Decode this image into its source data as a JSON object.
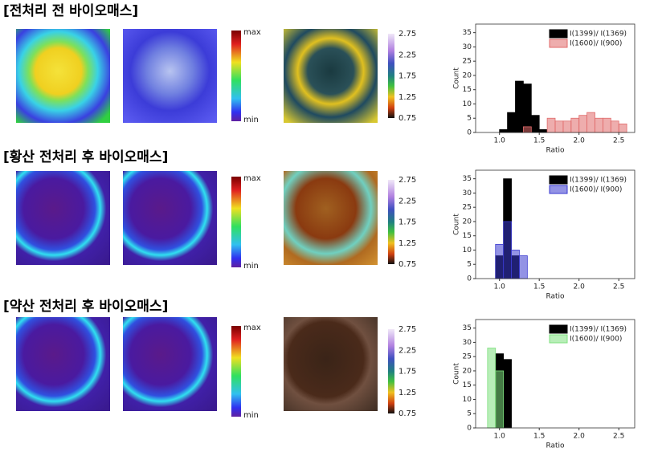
{
  "sections": [
    {
      "title": "[전처리 전 바이오매스]",
      "intensity_labels": [
        "max",
        "min"
      ],
      "ratio_ticks": [
        2.75,
        2.25,
        1.75,
        1.25,
        0.75
      ]
    },
    {
      "title": "[황산 전처리 후 바이오매스]",
      "intensity_labels": [
        "max",
        "min"
      ],
      "ratio_ticks": [
        2.75,
        2.25,
        1.75,
        1.25,
        0.75
      ]
    },
    {
      "title": "[약산 전처리 후 바이오매스]",
      "intensity_labels": [
        "max",
        "min"
      ],
      "ratio_ticks": [
        2.75,
        2.25,
        1.75,
        1.25,
        0.75
      ]
    }
  ],
  "chart_data": [
    {
      "type": "histogram",
      "x_label": "Ratio",
      "y_label": "Count",
      "bins": [
        1.0,
        1.1,
        1.2,
        1.3,
        1.4,
        1.5,
        1.6,
        1.7,
        1.8,
        1.9,
        2.0,
        2.1,
        2.2,
        2.3,
        2.4,
        2.5,
        2.6
      ],
      "series": [
        {
          "name": "I(1399)/ I(1369)",
          "color": "#000000",
          "values": [
            1,
            7,
            18,
            17,
            6,
            1,
            0,
            0,
            0,
            0,
            0,
            0,
            0,
            0,
            0,
            0
          ]
        },
        {
          "name": "I(1600)/ I(900)",
          "color": "#e06a6a",
          "values": [
            0,
            0,
            0,
            2,
            0,
            0,
            5,
            4,
            4,
            5,
            6,
            7,
            5,
            5,
            4,
            3
          ]
        }
      ],
      "xlim": [
        0.7,
        2.7
      ],
      "xticks": [
        {
          "value": 1.0,
          "label": "1.0"
        },
        {
          "value": 1.5,
          "label": "1.5"
        },
        {
          "value": 2.0,
          "label": "2.0"
        },
        {
          "value": 2.5,
          "label": "2.5"
        }
      ],
      "ylim": [
        0,
        38
      ],
      "yticks": [
        0,
        5,
        10,
        15,
        20,
        25,
        30,
        35
      ]
    },
    {
      "type": "histogram",
      "x_label": "Ratio",
      "y_label": "Count",
      "bins": [
        0.95,
        1.05,
        1.15,
        1.25,
        1.35
      ],
      "series": [
        {
          "name": "I(1399)/ I(1369)",
          "color": "#000000",
          "values": [
            8,
            35,
            8,
            0
          ]
        },
        {
          "name": "I(1600)/ I(900)",
          "color": "#3a3ad0",
          "values": [
            12,
            20,
            10,
            8
          ]
        }
      ],
      "xlim": [
        0.7,
        2.7
      ],
      "xticks": [
        {
          "value": 1.0,
          "label": "1.0"
        },
        {
          "value": 1.5,
          "label": "1.5"
        },
        {
          "value": 2.0,
          "label": "2.0"
        },
        {
          "value": 2.5,
          "label": "2.5"
        }
      ],
      "ylim": [
        0,
        38
      ],
      "yticks": [
        0,
        5,
        10,
        15,
        20,
        25,
        30,
        35
      ]
    },
    {
      "type": "histogram",
      "x_label": "Ratio",
      "y_label": "Count",
      "bins": [
        0.85,
        0.95,
        1.05,
        1.15
      ],
      "series": [
        {
          "name": "I(1399)/ I(1369)",
          "color": "#000000",
          "values": [
            0,
            26,
            24
          ]
        },
        {
          "name": "I(1600)/ I(900)",
          "color": "#7ee07e",
          "values": [
            28,
            20,
            0
          ]
        }
      ],
      "xlim": [
        0.7,
        2.7
      ],
      "xticks": [
        {
          "value": 1.0,
          "label": "1.0"
        },
        {
          "value": 1.5,
          "label": "1.5"
        },
        {
          "value": 2.0,
          "label": "2.0"
        },
        {
          "value": 2.5,
          "label": "2.5"
        }
      ],
      "ylim": [
        0,
        38
      ],
      "yticks": [
        0,
        5,
        10,
        15,
        20,
        25,
        30,
        35
      ]
    }
  ]
}
